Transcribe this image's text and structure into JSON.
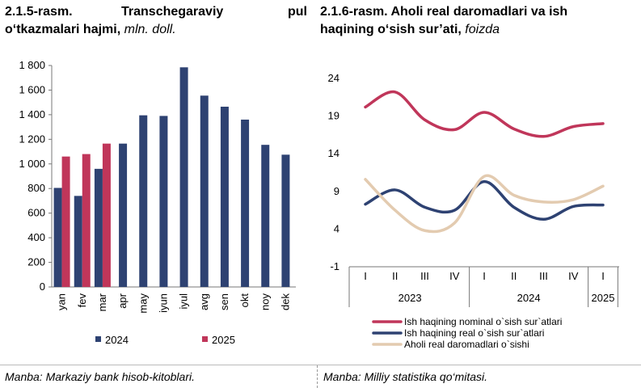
{
  "left_chart": {
    "title_line1_a": "2.1.5-rasm.",
    "title_line1_b": "Transchegaraviy",
    "title_line1_c": "pul",
    "title_line2": "o‘tkazmalari hajmi,",
    "title_unit": "mln. doll.",
    "source": "Manba: Markaziy bank hisob-kitoblari."
  },
  "right_chart": {
    "title_line1": "2.1.6-rasm. Aholi real daromadlari va ish",
    "title_line2": "haqining o‘sish sur’ati,",
    "title_unit": "foizda",
    "source": "Manba: Milliy statistika qo‘mitasi."
  },
  "chart_data": [
    {
      "type": "bar",
      "categories": [
        "yan",
        "fev",
        "mar",
        "apr",
        "may",
        "iyun",
        "iyul",
        "avg",
        "sen",
        "okt",
        "noy",
        "dek"
      ],
      "series": [
        {
          "name": "2024",
          "color": "#2e4272",
          "values": [
            805,
            740,
            960,
            1165,
            1395,
            1390,
            1785,
            1555,
            1465,
            1360,
            1155,
            1075
          ]
        },
        {
          "name": "2025",
          "color": "#c0365a",
          "values": [
            1060,
            1080,
            1165,
            null,
            null,
            null,
            null,
            null,
            null,
            null,
            null,
            null
          ]
        }
      ],
      "ylim": [
        0,
        1800
      ],
      "yticks": [
        "0",
        "200",
        "400",
        "600",
        "800",
        "1 000",
        "1 200",
        "1 400",
        "1 600",
        "1 800"
      ],
      "grid": false,
      "legend": "bottom"
    },
    {
      "type": "line",
      "x": [
        "I",
        "II",
        "III",
        "IV",
        "I",
        "II",
        "III",
        "IV",
        "I"
      ],
      "year_groups": [
        {
          "label": "2023",
          "span": [
            0,
            3
          ]
        },
        {
          "label": "2024",
          "span": [
            4,
            7
          ]
        },
        {
          "label": "2025",
          "span": [
            8,
            8
          ]
        }
      ],
      "series": [
        {
          "name": "Ish haqining nominal o`sish sur`atlari",
          "color": "#c0365a",
          "values": [
            20.2,
            22.2,
            18.5,
            17.2,
            19.5,
            17.3,
            16.3,
            17.6,
            18.0
          ]
        },
        {
          "name": "Ish haqining real o`sish sur`atlari",
          "color": "#2e4272",
          "values": [
            7.3,
            9.2,
            6.9,
            6.5,
            10.3,
            6.9,
            5.3,
            7.0,
            7.2
          ]
        },
        {
          "name": "Aholi real daromadlari o`sishi",
          "color": "#e3cbb0",
          "values": [
            10.6,
            6.5,
            3.8,
            4.8,
            11.0,
            8.5,
            7.6,
            7.9,
            9.7
          ]
        }
      ],
      "ylim": [
        -1,
        24
      ],
      "yticks": [
        "-1",
        "4",
        "9",
        "14",
        "19",
        "24"
      ],
      "grid": false,
      "legend": "bottom"
    }
  ]
}
